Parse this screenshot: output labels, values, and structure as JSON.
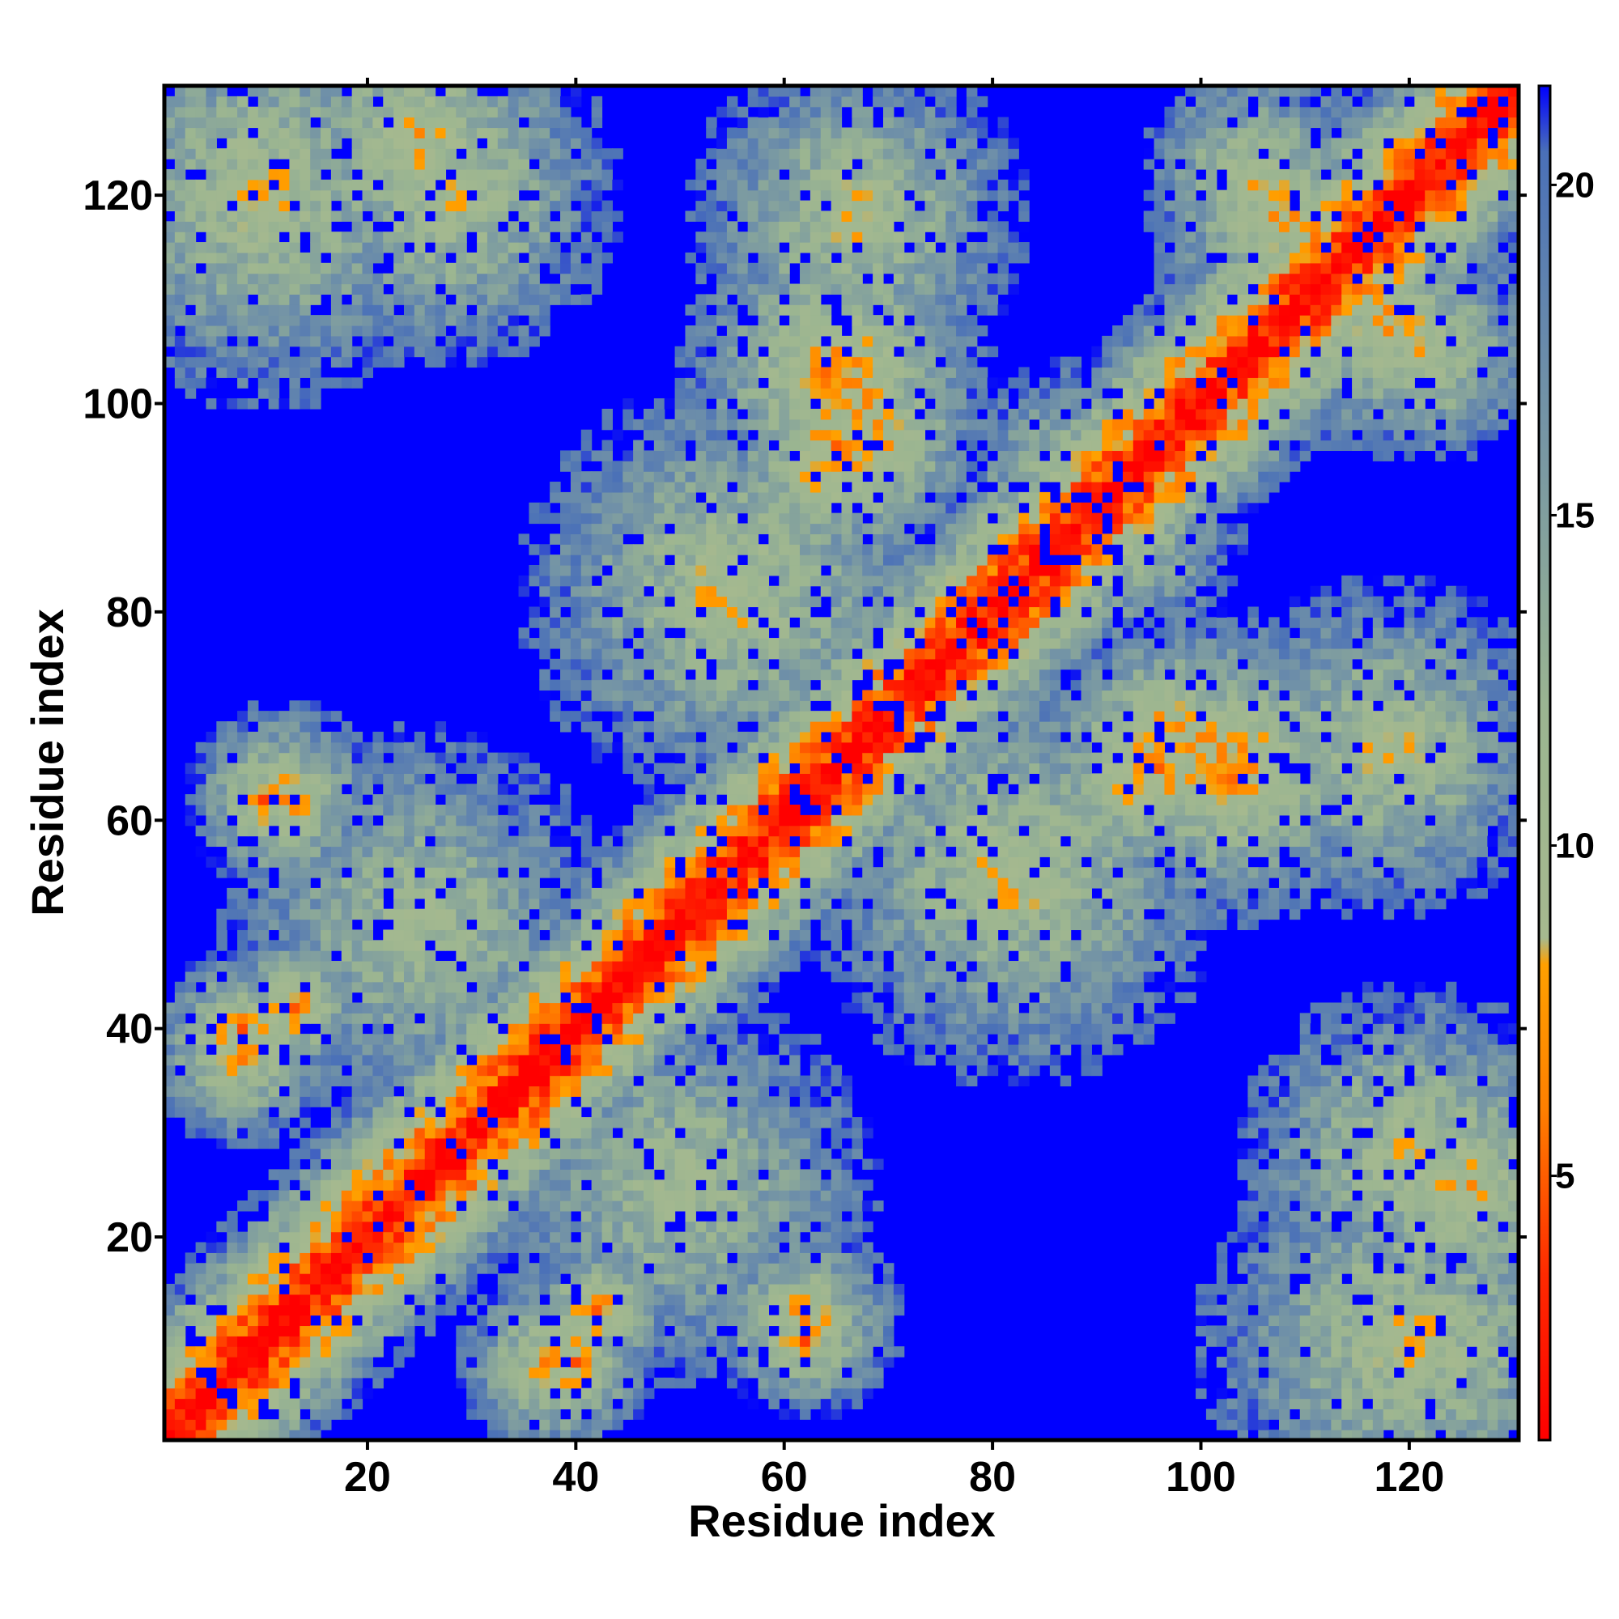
{
  "chart_data": {
    "type": "heatmap",
    "title": "",
    "xlabel": "Residue index",
    "ylabel": "Residue index",
    "n_residues": 130,
    "xlim": [
      1,
      130
    ],
    "ylim": [
      1,
      130
    ],
    "x_ticks": [
      20,
      40,
      60,
      80,
      100,
      120
    ],
    "y_ticks": [
      20,
      40,
      60,
      80,
      100,
      120
    ],
    "symmetric": true,
    "colorbar": {
      "range": [
        1,
        21.5
      ],
      "ticks": [
        5,
        10,
        15,
        20
      ],
      "placement": "right",
      "stops": [
        {
          "value": 1,
          "color": "#ff0000"
        },
        {
          "value": 3.5,
          "color": "#ff2a00"
        },
        {
          "value": 6,
          "color": "#ff7f00"
        },
        {
          "value": 8.2,
          "color": "#ffa000"
        },
        {
          "value": 8.6,
          "color": "#a6b98f"
        },
        {
          "value": 12,
          "color": "#9bb591"
        },
        {
          "value": 17,
          "color": "#6f90a8"
        },
        {
          "value": 20.5,
          "color": "#4a70b8"
        },
        {
          "value": 21.5,
          "color": "#0000ff"
        }
      ]
    },
    "cap_value": 21.5,
    "diagonal_band": {
      "value_on_diagonal": 1,
      "increase_per_residue": 1.35
    },
    "contact_regions": [
      {
        "i": 8,
        "j": 40,
        "value": 6.5,
        "spread": 3
      },
      {
        "i": 12,
        "j": 62,
        "value": 7,
        "spread": 4
      },
      {
        "i": 10,
        "j": 120,
        "value": 9,
        "spread": 10
      },
      {
        "i": 28,
        "j": 120,
        "value": 9,
        "spread": 8
      },
      {
        "i": 38,
        "j": 8,
        "value": 7,
        "spread": 4
      },
      {
        "i": 42,
        "j": 13,
        "value": 6.5,
        "spread": 3
      },
      {
        "i": 62,
        "j": 10,
        "value": 7,
        "spread": 3
      },
      {
        "i": 65,
        "j": 103,
        "value": 6,
        "spread": 6
      },
      {
        "i": 67,
        "j": 118,
        "value": 9,
        "spread": 8
      },
      {
        "i": 95,
        "j": 65,
        "value": 6.5,
        "spread": 5
      },
      {
        "i": 97,
        "j": 68,
        "value": 7,
        "spread": 5
      },
      {
        "i": 100,
        "j": 68,
        "value": 7,
        "spread": 4
      },
      {
        "i": 108,
        "j": 118,
        "value": 8,
        "spread": 6
      },
      {
        "i": 125,
        "j": 25,
        "value": 8.5,
        "spread": 8
      },
      {
        "i": 115,
        "j": 112,
        "value": 8,
        "spread": 4
      },
      {
        "i": 122,
        "j": 105,
        "value": 8.5,
        "spread": 5
      },
      {
        "i": 55,
        "j": 82,
        "value": 9,
        "spread": 10
      },
      {
        "i": 82,
        "j": 55,
        "value": 9,
        "spread": 10
      },
      {
        "i": 88,
        "j": 92,
        "value": 9,
        "spread": 6
      },
      {
        "i": 50,
        "j": 25,
        "value": 10,
        "spread": 10
      }
    ]
  }
}
